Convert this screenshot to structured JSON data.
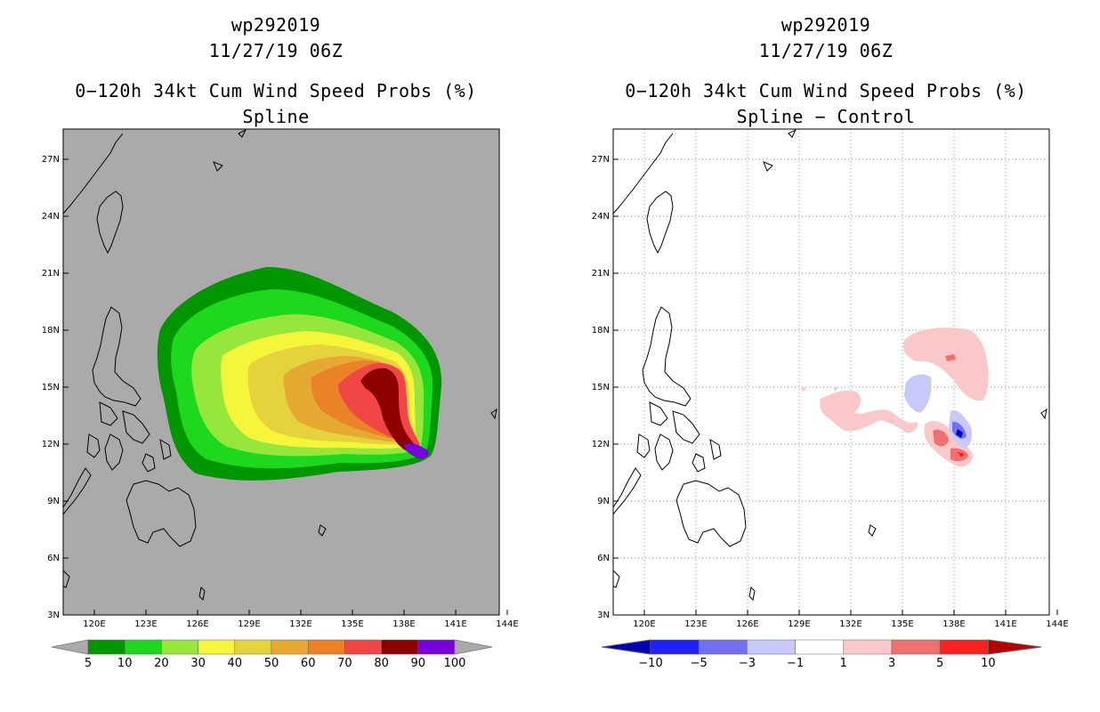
{
  "left": {
    "storm_id": "wp292019",
    "datetime": "11/27/19 06Z",
    "title": "0−120h 34kt Cum Wind Speed Probs (%)",
    "subtitle": "Spline",
    "colorbar": {
      "labels": [
        "5",
        "10",
        "20",
        "30",
        "40",
        "50",
        "60",
        "70",
        "80",
        "90",
        "100"
      ],
      "colors": [
        "#009600",
        "#1ed81e",
        "#96e63c",
        "#f5f53c",
        "#e6d23c",
        "#e6aa32",
        "#eb8228",
        "#f04646",
        "#8c0000",
        "#7800dc"
      ]
    }
  },
  "right": {
    "storm_id": "wp292019",
    "datetime": "11/27/19 06Z",
    "title": "0−120h 34kt Cum Wind Speed Probs (%)",
    "subtitle": "Spline − Control",
    "colorbar": {
      "labels": [
        "−10",
        "−5",
        "−3",
        "−1",
        "1",
        "3",
        "5",
        "10"
      ],
      "colors": [
        "#0000b4",
        "#2020ff",
        "#7070f0",
        "#c8c8fa",
        "#ffffff",
        "#fac8c8",
        "#f07070",
        "#ff2020",
        "#b40000"
      ]
    }
  },
  "axes": {
    "lat_labels": [
      "27N",
      "24N",
      "21N",
      "18N",
      "15N",
      "12N",
      "9N",
      "6N",
      "3N"
    ],
    "lon_labels": [
      "120E",
      "123E",
      "126E",
      "129E",
      "132E",
      "135E",
      "138E",
      "141E",
      "144E"
    ]
  },
  "colors": {
    "land_gray": "#aaaaaa",
    "grid": "#999999"
  }
}
